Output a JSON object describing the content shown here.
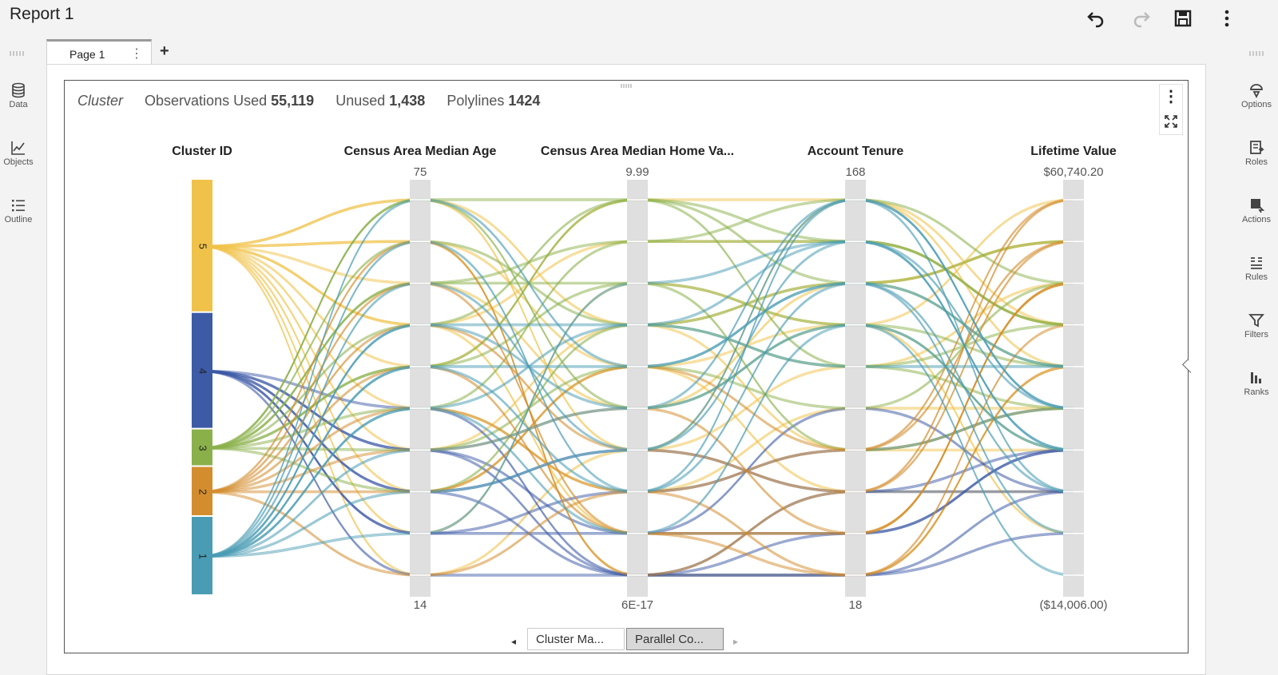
{
  "app": {
    "title": "Report 1",
    "toolbar": [
      {
        "name": "undo-icon"
      },
      {
        "name": "redo-icon"
      },
      {
        "name": "save-icon"
      },
      {
        "name": "more-vertical-icon"
      }
    ]
  },
  "left_rail": {
    "items": [
      {
        "label": "Data",
        "icon": "database-icon"
      },
      {
        "label": "Objects",
        "icon": "line-chart-icon"
      },
      {
        "label": "Outline",
        "icon": "list-icon"
      }
    ]
  },
  "right_rail": {
    "items": [
      {
        "label": "Options",
        "icon": "options-icon"
      },
      {
        "label": "Roles",
        "icon": "roles-icon"
      },
      {
        "label": "Actions",
        "icon": "actions-icon"
      },
      {
        "label": "Rules",
        "icon": "rules-icon"
      },
      {
        "label": "Filters",
        "icon": "filter-icon"
      },
      {
        "label": "Ranks",
        "icon": "ranks-icon"
      }
    ]
  },
  "tabs": {
    "page_label": "Page 1",
    "more": "⋮",
    "add": "+"
  },
  "object": {
    "title": "Cluster",
    "obs_used_label": "Observations Used",
    "obs_used_value": "55,119",
    "unused_label": "Unused",
    "unused_value": "1,438",
    "polylines_label": "Polylines",
    "polylines_value": "1424",
    "menu": "⋮"
  },
  "bottom_tabs": {
    "prev": "◂",
    "next": "▸",
    "items": [
      "Cluster Ma...",
      "Parallel Co..."
    ],
    "active_index": 1
  },
  "chart_data": {
    "type": "parallel_coordinates",
    "axes": [
      {
        "label": "Cluster ID",
        "top_label": "",
        "bottom_label": ""
      },
      {
        "label": "Census Area Median Age",
        "top_label": "75",
        "bottom_label": "14",
        "top": 75,
        "bottom": 14
      },
      {
        "label": "Census Area Median Home Va...",
        "top_label": "9.99",
        "bottom_label": "6E-17",
        "top": 9.99,
        "bottom": 6e-17
      },
      {
        "label": "Account Tenure",
        "top_label": "168",
        "bottom_label": "18",
        "top": 168,
        "bottom": 18
      },
      {
        "label": "Lifetime Value",
        "top_label": "$60,740.20",
        "bottom_label": "($14,006.00)",
        "top": 60740.2,
        "bottom": -14006.0
      }
    ],
    "bins_per_axis": 10,
    "clusters": [
      {
        "id": "5",
        "color": "#f0c24a",
        "share": 0.32
      },
      {
        "id": "4",
        "color": "#3c5aa6",
        "share": 0.28
      },
      {
        "id": "3",
        "color": "#8ab04a",
        "share": 0.09
      },
      {
        "id": "2",
        "color": "#d38d2e",
        "share": 0.12
      },
      {
        "id": "1",
        "color": "#4a9cb4",
        "share": 0.19
      }
    ],
    "flows": [
      {
        "cluster": "5",
        "bins": [
          [
            8,
            9,
            6,
            7,
            8
          ],
          [
            8,
            8,
            5,
            6,
            9
          ],
          [
            8,
            7,
            4,
            7,
            8
          ],
          [
            8,
            9,
            3,
            5,
            7
          ],
          [
            8,
            6,
            8,
            8,
            6
          ],
          [
            8,
            5,
            9,
            9,
            5
          ],
          [
            8,
            4,
            2,
            4,
            4
          ],
          [
            8,
            3,
            6,
            3,
            3
          ],
          [
            8,
            2,
            5,
            2,
            2
          ],
          [
            8,
            1,
            7,
            6,
            1
          ],
          [
            8,
            0,
            3,
            9,
            6
          ],
          [
            8,
            6,
            1,
            1,
            7
          ],
          [
            8,
            8,
            0,
            0,
            5
          ]
        ]
      },
      {
        "cluster": "4",
        "bins": [
          [
            5,
            3,
            0,
            1,
            3
          ],
          [
            5,
            2,
            0,
            0,
            2
          ],
          [
            5,
            1,
            1,
            1,
            3
          ],
          [
            5,
            4,
            0,
            2,
            2
          ],
          [
            5,
            0,
            0,
            0,
            1
          ],
          [
            5,
            1,
            2,
            3,
            4
          ],
          [
            5,
            3,
            1,
            4,
            2
          ],
          [
            5,
            2,
            3,
            2,
            3
          ]
        ]
      },
      {
        "cluster": "3",
        "bins": [
          [
            3,
            9,
            9,
            8,
            6
          ],
          [
            3,
            7,
            8,
            9,
            7
          ],
          [
            3,
            5,
            7,
            6,
            5
          ],
          [
            3,
            6,
            9,
            7,
            8
          ],
          [
            3,
            8,
            6,
            5,
            4
          ],
          [
            3,
            4,
            8,
            8,
            6
          ],
          [
            3,
            3,
            5,
            4,
            7
          ],
          [
            3,
            9,
            4,
            6,
            3
          ],
          [
            3,
            2,
            6,
            7,
            5
          ],
          [
            3,
            7,
            7,
            3,
            4
          ],
          [
            3,
            5,
            9,
            5,
            6
          ]
        ]
      },
      {
        "cluster": "2",
        "bins": [
          [
            2,
            4,
            2,
            3,
            9
          ],
          [
            2,
            6,
            3,
            2,
            8
          ],
          [
            2,
            3,
            4,
            1,
            7
          ],
          [
            2,
            5,
            1,
            0,
            6
          ],
          [
            2,
            8,
            0,
            2,
            9
          ],
          [
            2,
            2,
            5,
            3,
            8
          ],
          [
            2,
            7,
            1,
            1,
            7
          ],
          [
            2,
            0,
            2,
            0,
            5
          ]
        ]
      },
      {
        "cluster": "1",
        "bins": [
          [
            0,
            6,
            4,
            9,
            4
          ],
          [
            0,
            7,
            3,
            8,
            3
          ],
          [
            0,
            5,
            5,
            7,
            5
          ],
          [
            0,
            8,
            2,
            9,
            2
          ],
          [
            0,
            4,
            6,
            8,
            4
          ],
          [
            0,
            3,
            4,
            6,
            3
          ],
          [
            0,
            9,
            5,
            7,
            2
          ],
          [
            0,
            2,
            3,
            9,
            4
          ],
          [
            0,
            6,
            6,
            5,
            5
          ],
          [
            0,
            1,
            7,
            8,
            3
          ],
          [
            0,
            5,
            2,
            7,
            1
          ],
          [
            0,
            4,
            1,
            6,
            0
          ]
        ]
      }
    ]
  }
}
